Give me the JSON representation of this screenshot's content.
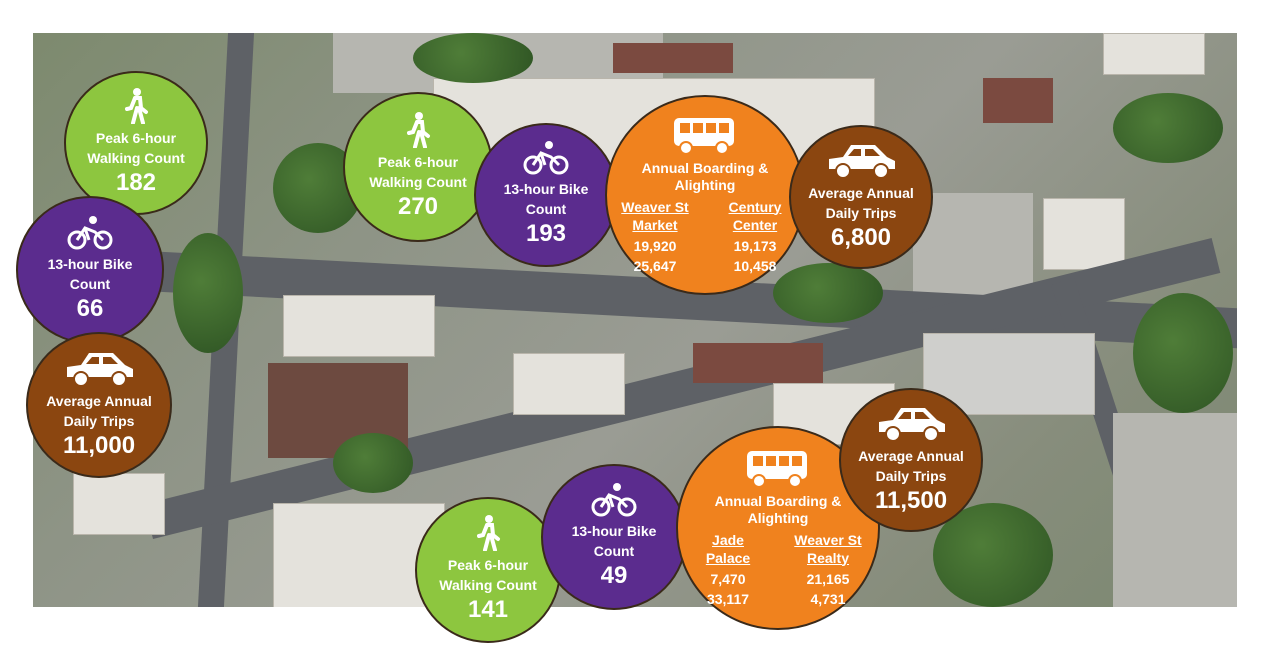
{
  "colors": {
    "walking": "#8dc63f",
    "bike": "#5b2c8e",
    "transit": "#f0821e",
    "traffic": "#8b4610"
  },
  "circles": [
    {
      "type": "walking",
      "icon": "pedestrian-icon",
      "label": "Peak 6-hour Walking Count",
      "value": "182"
    },
    {
      "type": "bike",
      "icon": "bicycle-icon",
      "label": "13-hour Bike Count",
      "value": "66"
    },
    {
      "type": "traffic",
      "icon": "car-icon",
      "label": "Average Annual Daily Trips",
      "value": "11,000"
    },
    {
      "type": "walking",
      "icon": "pedestrian-icon",
      "label": "Peak 6-hour Walking Count",
      "value": "270"
    },
    {
      "type": "bike",
      "icon": "bicycle-icon",
      "label": "13-hour Bike Count",
      "value": "193"
    },
    {
      "type": "transit",
      "icon": "bus-icon",
      "label": "Annual Boarding & Alighting",
      "stops": [
        {
          "name": "Weaver St Market",
          "values": [
            "19,920",
            "25,647"
          ]
        },
        {
          "name": "Century Center",
          "values": [
            "19,173",
            "10,458"
          ]
        }
      ]
    },
    {
      "type": "traffic",
      "icon": "car-icon",
      "label": "Average Annual Daily Trips",
      "value": "6,800"
    },
    {
      "type": "walking",
      "icon": "pedestrian-icon",
      "label": "Peak 6-hour Walking Count",
      "value": "141"
    },
    {
      "type": "bike",
      "icon": "bicycle-icon",
      "label": "13-hour Bike Count",
      "value": "49"
    },
    {
      "type": "transit",
      "icon": "bus-icon",
      "label": "Annual Boarding & Alighting",
      "stops": [
        {
          "name": "Jade Palace",
          "values": [
            "7,470",
            "33,117"
          ]
        },
        {
          "name": "Weaver St Realty",
          "values": [
            "21,165",
            "4,731"
          ]
        }
      ]
    },
    {
      "type": "traffic",
      "icon": "car-icon",
      "label": "Average Annual Daily Trips",
      "value": "11,500"
    }
  ]
}
